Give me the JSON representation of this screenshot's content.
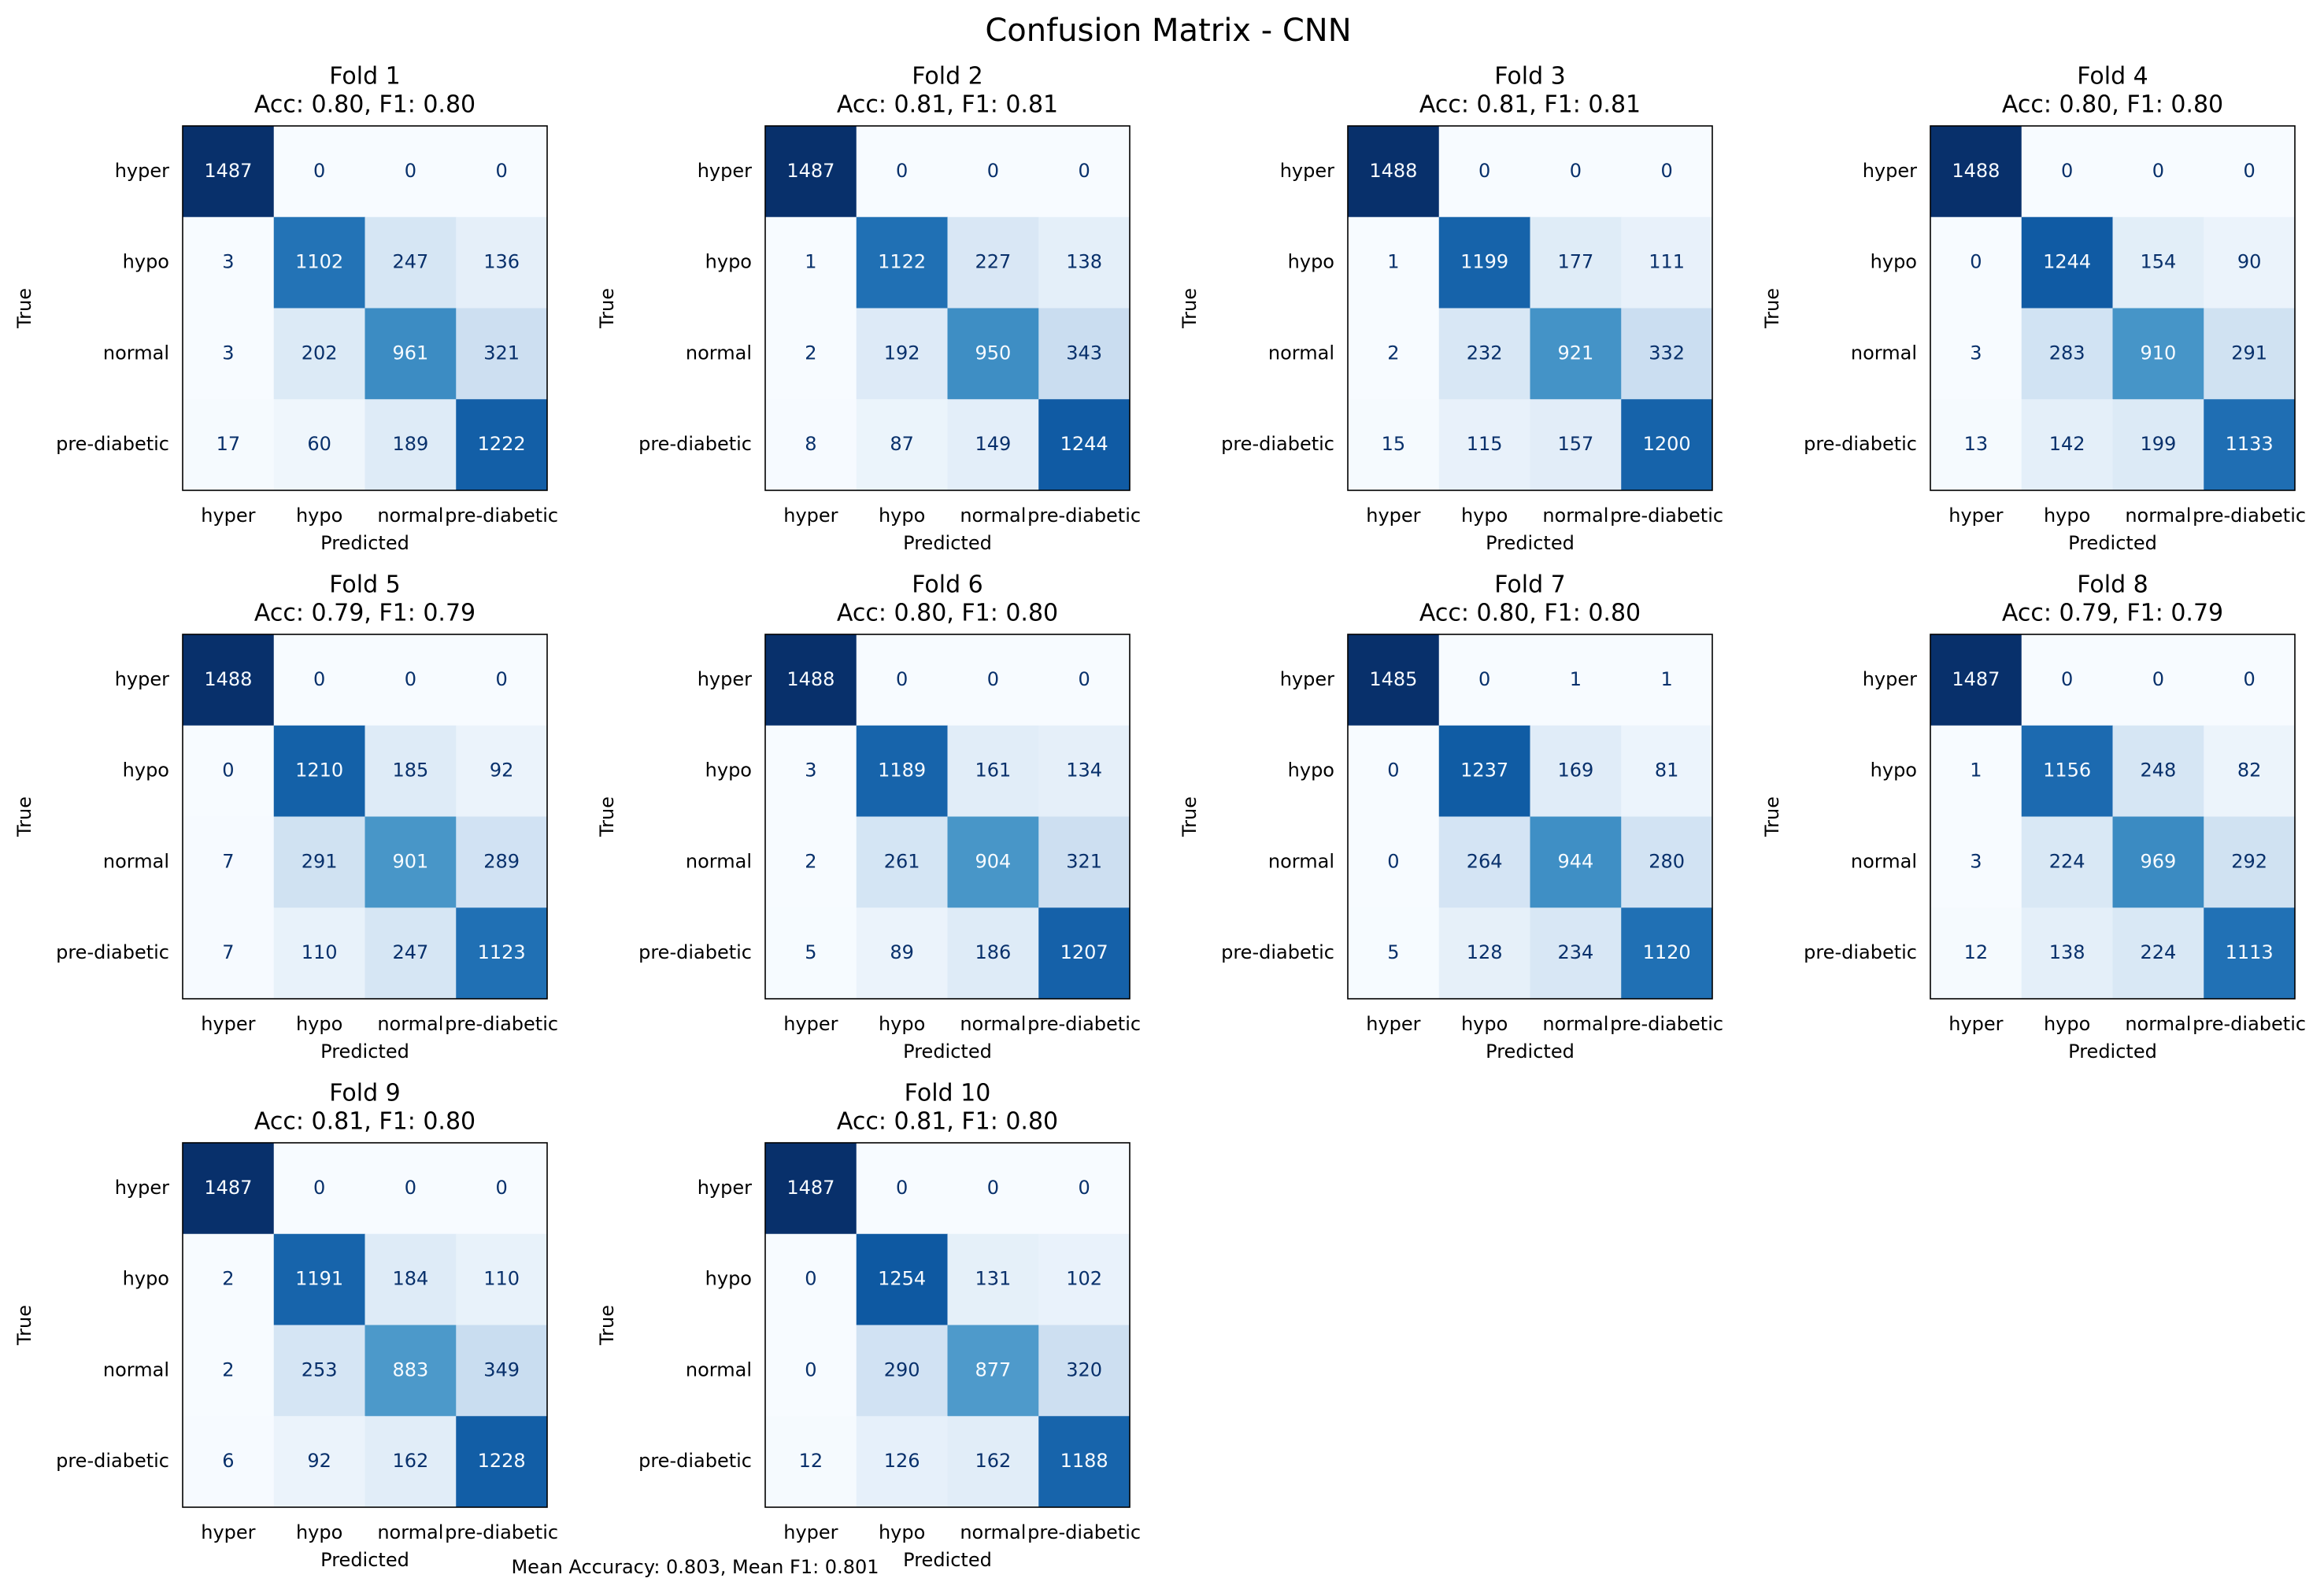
{
  "title": "Confusion Matrix - CNN",
  "footer": "Mean Accuracy: 0.803, Mean F1: 0.801",
  "chart_data": [
    {
      "type": "heatmap",
      "title": "Fold 1",
      "subtitle": "Acc: 0.80, F1: 0.80",
      "xlabel": "Predicted",
      "ylabel": "True",
      "colormap": "Blues",
      "x_categories": [
        "hyper",
        "hypo",
        "normal",
        "pre-diabetic"
      ],
      "y_categories": [
        "hyper",
        "hypo",
        "normal",
        "pre-diabetic"
      ],
      "values": [
        [
          1487,
          0,
          0,
          0
        ],
        [
          3,
          1102,
          247,
          136
        ],
        [
          3,
          202,
          961,
          321
        ],
        [
          17,
          60,
          189,
          1222
        ]
      ]
    },
    {
      "type": "heatmap",
      "title": "Fold 2",
      "subtitle": "Acc: 0.81, F1: 0.81",
      "xlabel": "Predicted",
      "ylabel": "True",
      "colormap": "Blues",
      "x_categories": [
        "hyper",
        "hypo",
        "normal",
        "pre-diabetic"
      ],
      "y_categories": [
        "hyper",
        "hypo",
        "normal",
        "pre-diabetic"
      ],
      "values": [
        [
          1487,
          0,
          0,
          0
        ],
        [
          1,
          1122,
          227,
          138
        ],
        [
          2,
          192,
          950,
          343
        ],
        [
          8,
          87,
          149,
          1244
        ]
      ]
    },
    {
      "type": "heatmap",
      "title": "Fold 3",
      "subtitle": "Acc: 0.81, F1: 0.81",
      "xlabel": "Predicted",
      "ylabel": "True",
      "colormap": "Blues",
      "x_categories": [
        "hyper",
        "hypo",
        "normal",
        "pre-diabetic"
      ],
      "y_categories": [
        "hyper",
        "hypo",
        "normal",
        "pre-diabetic"
      ],
      "values": [
        [
          1488,
          0,
          0,
          0
        ],
        [
          1,
          1199,
          177,
          111
        ],
        [
          2,
          232,
          921,
          332
        ],
        [
          15,
          115,
          157,
          1200
        ]
      ]
    },
    {
      "type": "heatmap",
      "title": "Fold 4",
      "subtitle": "Acc: 0.80, F1: 0.80",
      "xlabel": "Predicted",
      "ylabel": "True",
      "colormap": "Blues",
      "x_categories": [
        "hyper",
        "hypo",
        "normal",
        "pre-diabetic"
      ],
      "y_categories": [
        "hyper",
        "hypo",
        "normal",
        "pre-diabetic"
      ],
      "values": [
        [
          1488,
          0,
          0,
          0
        ],
        [
          0,
          1244,
          154,
          90
        ],
        [
          3,
          283,
          910,
          291
        ],
        [
          13,
          142,
          199,
          1133
        ]
      ]
    },
    {
      "type": "heatmap",
      "title": "Fold 5",
      "subtitle": "Acc: 0.79, F1: 0.79",
      "xlabel": "Predicted",
      "ylabel": "True",
      "colormap": "Blues",
      "x_categories": [
        "hyper",
        "hypo",
        "normal",
        "pre-diabetic"
      ],
      "y_categories": [
        "hyper",
        "hypo",
        "normal",
        "pre-diabetic"
      ],
      "values": [
        [
          1488,
          0,
          0,
          0
        ],
        [
          0,
          1210,
          185,
          92
        ],
        [
          7,
          291,
          901,
          289
        ],
        [
          7,
          110,
          247,
          1123
        ]
      ]
    },
    {
      "type": "heatmap",
      "title": "Fold 6",
      "subtitle": "Acc: 0.80, F1: 0.80",
      "xlabel": "Predicted",
      "ylabel": "True",
      "colormap": "Blues",
      "x_categories": [
        "hyper",
        "hypo",
        "normal",
        "pre-diabetic"
      ],
      "y_categories": [
        "hyper",
        "hypo",
        "normal",
        "pre-diabetic"
      ],
      "values": [
        [
          1488,
          0,
          0,
          0
        ],
        [
          3,
          1189,
          161,
          134
        ],
        [
          2,
          261,
          904,
          321
        ],
        [
          5,
          89,
          186,
          1207
        ]
      ]
    },
    {
      "type": "heatmap",
      "title": "Fold 7",
      "subtitle": "Acc: 0.80, F1: 0.80",
      "xlabel": "Predicted",
      "ylabel": "True",
      "colormap": "Blues",
      "x_categories": [
        "hyper",
        "hypo",
        "normal",
        "pre-diabetic"
      ],
      "y_categories": [
        "hyper",
        "hypo",
        "normal",
        "pre-diabetic"
      ],
      "values": [
        [
          1485,
          0,
          1,
          1
        ],
        [
          0,
          1237,
          169,
          81
        ],
        [
          0,
          264,
          944,
          280
        ],
        [
          5,
          128,
          234,
          1120
        ]
      ]
    },
    {
      "type": "heatmap",
      "title": "Fold 8",
      "subtitle": "Acc: 0.79, F1: 0.79",
      "xlabel": "Predicted",
      "ylabel": "True",
      "colormap": "Blues",
      "x_categories": [
        "hyper",
        "hypo",
        "normal",
        "pre-diabetic"
      ],
      "y_categories": [
        "hyper",
        "hypo",
        "normal",
        "pre-diabetic"
      ],
      "values": [
        [
          1487,
          0,
          0,
          0
        ],
        [
          1,
          1156,
          248,
          82
        ],
        [
          3,
          224,
          969,
          292
        ],
        [
          12,
          138,
          224,
          1113
        ]
      ]
    },
    {
      "type": "heatmap",
      "title": "Fold 9",
      "subtitle": "Acc: 0.81, F1: 0.80",
      "xlabel": "Predicted",
      "ylabel": "True",
      "colormap": "Blues",
      "x_categories": [
        "hyper",
        "hypo",
        "normal",
        "pre-diabetic"
      ],
      "y_categories": [
        "hyper",
        "hypo",
        "normal",
        "pre-diabetic"
      ],
      "values": [
        [
          1487,
          0,
          0,
          0
        ],
        [
          2,
          1191,
          184,
          110
        ],
        [
          2,
          253,
          883,
          349
        ],
        [
          6,
          92,
          162,
          1228
        ]
      ]
    },
    {
      "type": "heatmap",
      "title": "Fold 10",
      "subtitle": "Acc: 0.81, F1: 0.80",
      "xlabel": "Predicted",
      "ylabel": "True",
      "colormap": "Blues",
      "x_categories": [
        "hyper",
        "hypo",
        "normal",
        "pre-diabetic"
      ],
      "y_categories": [
        "hyper",
        "hypo",
        "normal",
        "pre-diabetic"
      ],
      "values": [
        [
          1487,
          0,
          0,
          0
        ],
        [
          0,
          1254,
          131,
          102
        ],
        [
          0,
          290,
          877,
          320
        ],
        [
          12,
          126,
          162,
          1188
        ]
      ]
    }
  ]
}
